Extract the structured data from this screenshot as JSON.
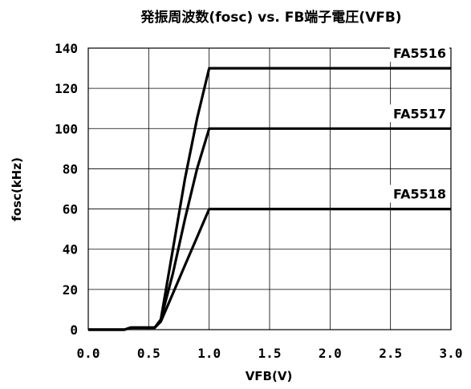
{
  "chart_data": {
    "type": "line",
    "title": "発振周波数(fosc) vs. FB端子電圧(VFB)",
    "xlabel": "VFB(V)",
    "ylabel": "fosc(kHz)",
    "xlim": [
      0,
      3.0
    ],
    "ylim": [
      0,
      140
    ],
    "x_ticks": [
      0.0,
      0.5,
      1.0,
      1.5,
      2.0,
      2.5,
      3.0
    ],
    "x_tick_labels": [
      "0.0",
      "0.5",
      "1.0",
      "1.5",
      "2.0",
      "2.5",
      "3.0"
    ],
    "y_ticks": [
      0,
      20,
      40,
      60,
      80,
      100,
      120,
      140
    ],
    "y_tick_labels": [
      "0",
      "20",
      "40",
      "60",
      "80",
      "100",
      "120",
      "140"
    ],
    "grid": true,
    "series": [
      {
        "name": "FA5516",
        "x": [
          0.0,
          0.3,
          0.35,
          0.55,
          0.6,
          0.7,
          0.8,
          0.9,
          1.0,
          3.0
        ],
        "y": [
          0,
          0,
          1,
          1,
          5,
          40,
          75,
          105,
          130,
          130
        ]
      },
      {
        "name": "FA5517",
        "x": [
          0.0,
          0.3,
          0.35,
          0.55,
          0.6,
          0.7,
          0.8,
          0.9,
          1.0,
          3.0
        ],
        "y": [
          0,
          0,
          1,
          1,
          5,
          28,
          55,
          80,
          100,
          100
        ]
      },
      {
        "name": "FA5518",
        "x": [
          0.0,
          0.3,
          0.35,
          0.55,
          0.6,
          0.7,
          0.8,
          0.9,
          1.0,
          3.0
        ],
        "y": [
          0,
          0,
          1,
          1,
          4,
          18,
          32,
          46,
          60,
          60
        ]
      }
    ],
    "line_color": "#000000"
  }
}
